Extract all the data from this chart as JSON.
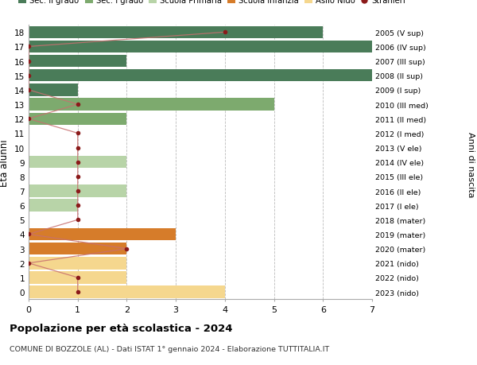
{
  "ages": [
    18,
    17,
    16,
    15,
    14,
    13,
    12,
    11,
    10,
    9,
    8,
    7,
    6,
    5,
    4,
    3,
    2,
    1,
    0
  ],
  "years": [
    "2005 (V sup)",
    "2006 (IV sup)",
    "2007 (III sup)",
    "2008 (II sup)",
    "2009 (I sup)",
    "2010 (III med)",
    "2011 (II med)",
    "2012 (I med)",
    "2013 (V ele)",
    "2014 (IV ele)",
    "2015 (III ele)",
    "2016 (II ele)",
    "2017 (I ele)",
    "2018 (mater)",
    "2019 (mater)",
    "2020 (mater)",
    "2021 (nido)",
    "2022 (nido)",
    "2023 (nido)"
  ],
  "bar_values": [
    6,
    7,
    2,
    7,
    1,
    5,
    2,
    0,
    0,
    2,
    0,
    2,
    1,
    0,
    3,
    2,
    2,
    2,
    4
  ],
  "bar_colors": [
    "#4a7c59",
    "#4a7c59",
    "#4a7c59",
    "#4a7c59",
    "#4a7c59",
    "#7daa6e",
    "#7daa6e",
    "#7daa6e",
    "#b8d4a8",
    "#b8d4a8",
    "#b8d4a8",
    "#b8d4a8",
    "#b8d4a8",
    "#d67c2a",
    "#d67c2a",
    "#d67c2a",
    "#f5d78e",
    "#f5d78e",
    "#f5d78e"
  ],
  "stranieri_values": [
    4,
    0,
    0,
    0,
    0,
    1,
    0,
    1,
    1,
    1,
    1,
    1,
    1,
    1,
    0,
    2,
    0,
    1,
    1
  ],
  "stranieri_color": "#8b1a1a",
  "stranieri_line_color": "#c87070",
  "legend_labels": [
    "Sec. II grado",
    "Sec. I grado",
    "Scuola Primaria",
    "Scuola Infanzia",
    "Asilo Nido",
    "Stranieri"
  ],
  "legend_colors": [
    "#4a7c59",
    "#7daa6e",
    "#b8d4a8",
    "#d67c2a",
    "#f5d78e",
    "#8b1a1a"
  ],
  "title_main": "Popolazione per età scolastica - 2024",
  "title_sub": "COMUNE DI BOZZOLE (AL) - Dati ISTAT 1° gennaio 2024 - Elaborazione TUTTITALIA.IT",
  "ylabel_left": "Età alunni",
  "ylabel_right": "Anni di nascita",
  "xlim": [
    0,
    7
  ],
  "background_color": "#ffffff",
  "grid_color": "#bbbbbb"
}
